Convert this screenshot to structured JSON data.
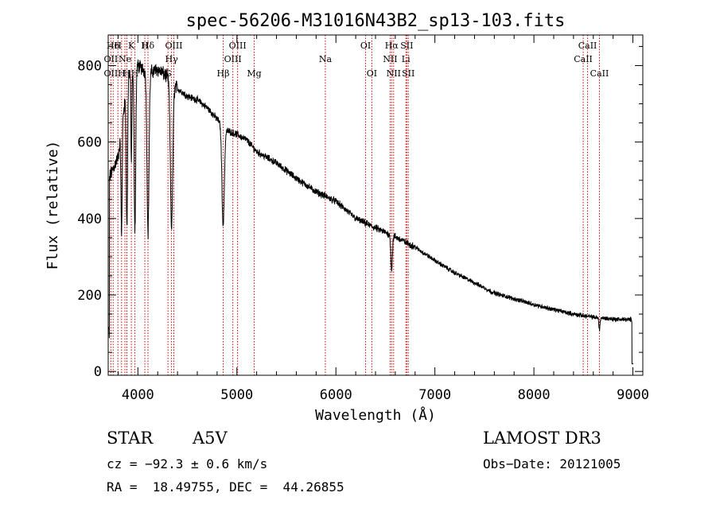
{
  "chart_data": {
    "type": "line",
    "title": "spec-56206-M31016N43B2_sp13-103.fits",
    "xlabel": "Wavelength (Å)",
    "ylabel": "Flux (relative)",
    "xlim": [
      3700,
      9100
    ],
    "ylim": [
      -10,
      880
    ],
    "x_ticks": [
      4000,
      5000,
      6000,
      7000,
      8000,
      9000
    ],
    "x_tick_labels": [
      "4000",
      "5000",
      "6000",
      "7000",
      "8000",
      "9000"
    ],
    "y_ticks": [
      0,
      200,
      400,
      600,
      800
    ],
    "y_tick_labels": [
      "0",
      "200",
      "400",
      "600",
      "800"
    ],
    "continuum": [
      [
        3700,
        500
      ],
      [
        3800,
        560
      ],
      [
        3900,
        780
      ],
      [
        4000,
        800
      ],
      [
        4100,
        780
      ],
      [
        4200,
        790
      ],
      [
        4300,
        770
      ],
      [
        4400,
        740
      ],
      [
        4500,
        720
      ],
      [
        4600,
        710
      ],
      [
        4700,
        690
      ],
      [
        4800,
        660
      ],
      [
        4900,
        630
      ],
      [
        5000,
        620
      ],
      [
        5100,
        605
      ],
      [
        5200,
        575
      ],
      [
        5400,
        545
      ],
      [
        5600,
        505
      ],
      [
        5800,
        470
      ],
      [
        6000,
        445
      ],
      [
        6200,
        400
      ],
      [
        6400,
        375
      ],
      [
        6600,
        352
      ],
      [
        6800,
        325
      ],
      [
        7000,
        290
      ],
      [
        7200,
        258
      ],
      [
        7400,
        232
      ],
      [
        7600,
        205
      ],
      [
        7800,
        190
      ],
      [
        8000,
        175
      ],
      [
        8200,
        162
      ],
      [
        8400,
        150
      ],
      [
        8600,
        142
      ],
      [
        8800,
        137
      ],
      [
        9000,
        135
      ]
    ],
    "absorption_features": [
      {
        "wavelength": 3835,
        "depth": 280,
        "width": 6
      },
      {
        "wavelength": 3889,
        "depth": 380,
        "width": 7
      },
      {
        "wavelength": 3934,
        "depth": 240,
        "width": 5
      },
      {
        "wavelength": 3970,
        "depth": 420,
        "width": 8
      },
      {
        "wavelength": 4102,
        "depth": 420,
        "width": 10
      },
      {
        "wavelength": 4340,
        "depth": 380,
        "width": 12
      },
      {
        "wavelength": 4861,
        "depth": 260,
        "width": 12
      },
      {
        "wavelength": 6563,
        "depth": 90,
        "width": 8
      },
      {
        "wavelength": 8662,
        "depth": 30,
        "width": 6
      }
    ],
    "lines": [
      {
        "wavelength": 3727,
        "label": "OII",
        "row": 3
      },
      {
        "wavelength": 3727,
        "label": "OII",
        "row": 2
      },
      {
        "wavelength": 3750,
        "label": "H6",
        "row": 1
      },
      {
        "wavelength": 3798,
        "label": "H",
        "row": 1
      },
      {
        "wavelength": 3835,
        "label": "H",
        "row": 3
      },
      {
        "wavelength": 3869,
        "label": "Ne",
        "row": 2
      },
      {
        "wavelength": 3889,
        "label": "H",
        "row": 3
      },
      {
        "wavelength": 3934,
        "label": "K",
        "row": 1
      },
      {
        "wavelength": 3970,
        "label": "H",
        "row": 3
      },
      {
        "wavelength": 4070,
        "label": "H",
        "row": 1
      },
      {
        "wavelength": 4102,
        "label": "Hδ",
        "row": 1
      },
      {
        "wavelength": 4304,
        "label": "G",
        "row": 3
      },
      {
        "wavelength": 4340,
        "label": "Hγ",
        "row": 2
      },
      {
        "wavelength": 4363,
        "label": "OIII",
        "row": 1
      },
      {
        "wavelength": 4861,
        "label": "Hβ",
        "row": 3
      },
      {
        "wavelength": 4959,
        "label": "OIII",
        "row": 2
      },
      {
        "wavelength": 5007,
        "label": "OIII",
        "row": 1
      },
      {
        "wavelength": 5175,
        "label": "Mg",
        "row": 3
      },
      {
        "wavelength": 5893,
        "label": "Na",
        "row": 2
      },
      {
        "wavelength": 6300,
        "label": "OI",
        "row": 1
      },
      {
        "wavelength": 6363,
        "label": "OI",
        "row": 3
      },
      {
        "wavelength": 6548,
        "label": "NII",
        "row": 2
      },
      {
        "wavelength": 6563,
        "label": "Hα",
        "row": 1
      },
      {
        "wavelength": 6583,
        "label": "NII",
        "row": 3
      },
      {
        "wavelength": 6707,
        "label": "Li",
        "row": 2
      },
      {
        "wavelength": 6716,
        "label": "SII",
        "row": 1
      },
      {
        "wavelength": 6731,
        "label": "SII",
        "row": 3
      },
      {
        "wavelength": 8498,
        "label": "CaII",
        "row": 2
      },
      {
        "wavelength": 8542,
        "label": "CaII",
        "row": 1
      },
      {
        "wavelength": 8662,
        "label": "CaII",
        "row": 3
      }
    ]
  },
  "info": {
    "class_label": "STAR",
    "subclass": "A5V",
    "survey": "LAMOST DR3",
    "cz": "cz = −92.3 ± 0.6 km/s",
    "obs_date": "Obs−Date: 20121005",
    "coords": "RA =  18.49755, DEC =  44.26855"
  },
  "colors": {
    "line_marker": "#cc0000",
    "spectrum": "#000000",
    "axes": "#000000"
  }
}
